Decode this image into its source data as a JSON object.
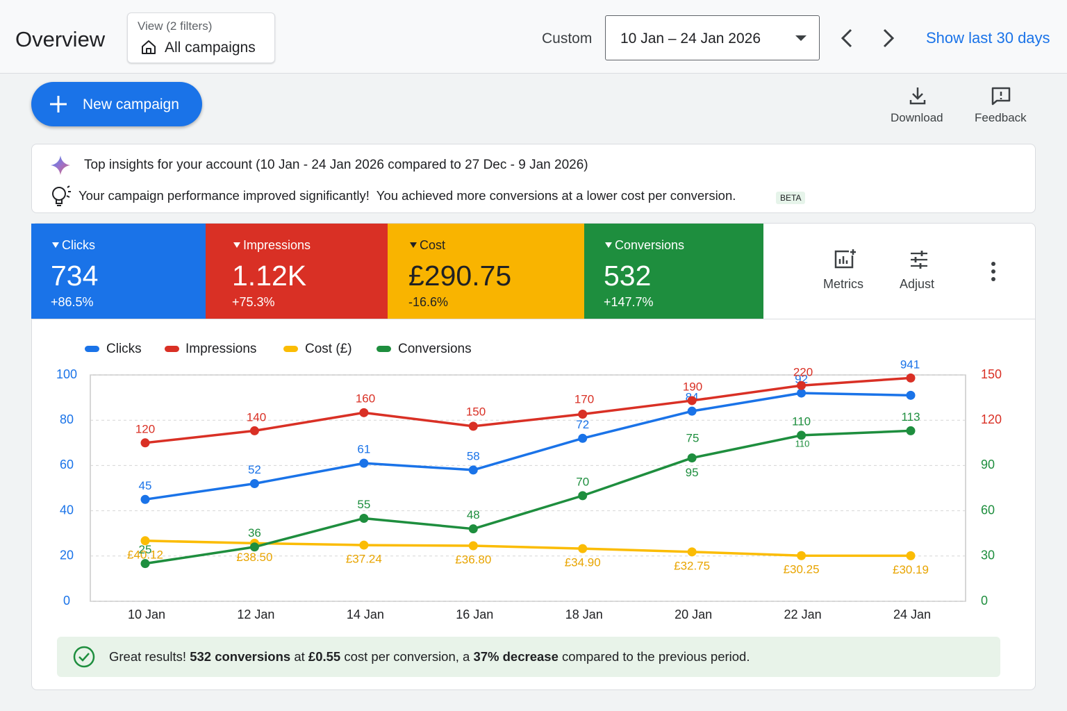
{
  "header": {
    "title": "Overview",
    "view_label": "View (2 filters)",
    "view_value": "All campaigns",
    "range_mode": "Custom",
    "date_range": "10 Jan – 24 Jan 2026",
    "show_last": "Show last 30 days"
  },
  "toolbar": {
    "new_campaign": "New campaign",
    "download": "Download",
    "feedback": "Feedback"
  },
  "insights": {
    "title": "Top insights for your account (10 Jan - 24 Jan 2026 compared to 27 Dec - 9 Jan 2026)",
    "message": "Your campaign performance improved significantly!  You achieved more conversions at a lower cost per conversion.",
    "badge": "BETA"
  },
  "metrics": [
    {
      "label": "Clicks",
      "value": "734",
      "change": "+86.5%"
    },
    {
      "label": "Impressions",
      "value": "1.12K",
      "change": "+75.3%"
    },
    {
      "label": "Cost",
      "value": "£290.75",
      "change": "-16.6%"
    },
    {
      "label": "Conversions",
      "value": "532",
      "change": "+147.7%"
    }
  ],
  "metric_actions": {
    "metrics": "Metrics",
    "adjust": "Adjust"
  },
  "chart_data": {
    "type": "line",
    "categories": [
      "10 Jan",
      "12 Jan",
      "14 Jan",
      "16 Jan",
      "18 Jan",
      "20 Jan",
      "22 Jan",
      "24 Jan"
    ],
    "ylim": [
      0,
      100
    ],
    "yticks": [
      0,
      20,
      40,
      60,
      80,
      100
    ],
    "y2lim": [
      0,
      150
    ],
    "y2ticks": [
      0,
      30,
      60,
      90,
      120,
      150
    ],
    "grid": true,
    "series": [
      {
        "name": "Clicks",
        "color": "#1a73e8",
        "values": [
          45,
          52,
          61,
          58,
          72,
          84,
          92,
          91
        ],
        "value_labels": [
          "45",
          "52",
          "61",
          "58",
          "72",
          "84",
          "92",
          null
        ]
      },
      {
        "name": "Impressions",
        "color": "#d93025",
        "axis": "y2",
        "values": [
          105,
          113,
          125,
          116,
          124,
          133,
          143,
          148
        ]
      },
      {
        "name": "Cost (£)",
        "color": "#fbbc04",
        "axis": "y2",
        "values": [
          40.12,
          38.5,
          37.24,
          36.8,
          34.9,
          32.75,
          30.25,
          30.19
        ],
        "value_labels": [
          "£40.12",
          "£38.50",
          "£37.24",
          "£36.80",
          "£34.90",
          "£32.75",
          "£30.25",
          "£30.19"
        ]
      },
      {
        "name": "Conversions",
        "color": "#1e8e3e",
        "axis": "y2",
        "values": [
          25,
          36,
          55,
          48,
          70,
          95,
          110,
          113
        ],
        "value_labels": [
          "25",
          "36",
          "55",
          "48",
          "70",
          "95",
          "110",
          "113"
        ]
      }
    ],
    "annotations": [
      "120",
      "140",
      "160",
      "150",
      "170",
      "190",
      "220",
      "941",
      "75",
      "110"
    ]
  },
  "summary": {
    "parts": [
      "Great results! ",
      "532 conversions",
      " at ",
      "£0.55",
      " cost per conversion, a ",
      "37% decrease",
      " compared to the previous period."
    ]
  }
}
